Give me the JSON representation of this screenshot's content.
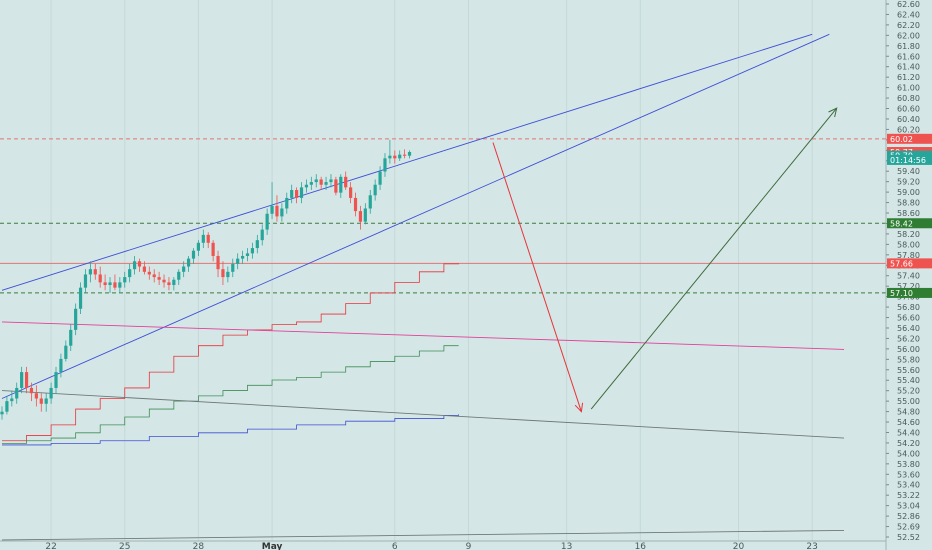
{
  "chart_data": {
    "type": "candlestick",
    "colors": {
      "background": "#d5e6e6",
      "up": "#26a69a",
      "down": "#ef5350",
      "channel": "#3d4fd8",
      "red_arrow": "#e8333a",
      "green_arrow": "#3c6b3c",
      "red_dashed": "#e57373",
      "green_dashed": "#3a7d3a",
      "pink_line": "#e0409a",
      "gray_line": "#6f7878",
      "step_red": "#e8333a",
      "step_green": "#3e8e54",
      "step_blue": "#3d4fd8"
    },
    "y_axis": {
      "min": 52.4,
      "max": 62.65,
      "side": "right",
      "ticks": [
        "62.60",
        "62.40",
        "62.20",
        "62.00",
        "61.80",
        "61.60",
        "61.40",
        "61.20",
        "61.00",
        "60.80",
        "60.60",
        "60.40",
        "60.20",
        "60.00",
        "59.80",
        "59.60",
        "59.40",
        "59.20",
        "59.00",
        "58.80",
        "58.60",
        "58.40",
        "58.20",
        "58.00",
        "57.80",
        "57.60",
        "57.40",
        "57.20",
        "57.00",
        "56.80",
        "56.60",
        "56.40",
        "56.20",
        "56.00",
        "55.80",
        "55.60",
        "55.40",
        "55.20",
        "55.00",
        "54.80",
        "54.60",
        "54.40",
        "54.20",
        "54.00",
        "53.80",
        "53.60",
        "53.40",
        "53.22",
        "53.04",
        "52.86",
        "52.69",
        "52.52"
      ]
    },
    "x_axis": {
      "ticks": [
        {
          "label": "22",
          "day": 22,
          "bold": false
        },
        {
          "label": "25",
          "day": 25,
          "bold": false
        },
        {
          "label": "28",
          "day": 28,
          "bold": false
        },
        {
          "label": "May",
          "day": 31,
          "bold": true
        },
        {
          "label": "6",
          "day": 36,
          "bold": false
        },
        {
          "label": "9",
          "day": 39,
          "bold": false
        },
        {
          "label": "13",
          "day": 43,
          "bold": false
        },
        {
          "label": "16",
          "day": 46,
          "bold": false
        },
        {
          "label": "20",
          "day": 50,
          "bold": false
        },
        {
          "label": "23",
          "day": 53,
          "bold": false
        }
      ]
    },
    "price_badges": [
      {
        "value": 60.02,
        "text": "60.02",
        "color": "#ef5350"
      },
      {
        "value": 59.77,
        "text": "59.77",
        "color": "#ef5350"
      },
      {
        "value": 59.7,
        "text": "59.70",
        "color": "#26a69a"
      },
      {
        "value": 59.62,
        "text": "01:14:56",
        "color": "#26a69a"
      },
      {
        "value": 58.42,
        "text": "58.42",
        "color": "#2e7d32"
      },
      {
        "value": 57.66,
        "text": "57.66",
        "color": "#ef5350"
      },
      {
        "value": 57.1,
        "text": "57.10",
        "color": "#2e7d32"
      }
    ],
    "horizontal_lines": [
      {
        "value": 60.02,
        "style": "dashed",
        "color_key": "red_dashed"
      },
      {
        "value": 58.42,
        "style": "dashed",
        "color_key": "green_dashed"
      },
      {
        "value": 57.66,
        "style": "solid",
        "color_key": "red_dashed"
      },
      {
        "value": 57.1,
        "style": "dashed",
        "color_key": "green_dashed"
      }
    ],
    "trend_lines": [
      {
        "name": "channel-upper",
        "from": [
          20.0,
          57.15
        ],
        "to": [
          53.0,
          62.0
        ],
        "color_key": "channel"
      },
      {
        "name": "channel-lower",
        "from": [
          20.0,
          55.1
        ],
        "to": [
          53.7,
          62.0
        ],
        "color_key": "channel"
      },
      {
        "name": "pink-line",
        "from": [
          20.0,
          56.55
        ],
        "to": [
          54.3,
          56.03
        ],
        "color_key": "pink_line"
      },
      {
        "name": "gray-line",
        "from": [
          20.0,
          55.25
        ],
        "to": [
          54.3,
          54.35
        ],
        "color_key": "gray_line"
      },
      {
        "name": "bottom-line",
        "from": [
          20.0,
          52.42
        ],
        "to": [
          54.3,
          52.6
        ],
        "color_key": "gray_line"
      }
    ],
    "arrows": [
      {
        "name": "red-down-arrow",
        "from": [
          40.0,
          59.95
        ],
        "to": [
          43.6,
          54.85
        ],
        "color_key": "red_arrow"
      },
      {
        "name": "green-up-arrow",
        "from": [
          44.0,
          54.9
        ],
        "to": [
          54.0,
          60.6
        ],
        "color_key": "green_arrow"
      }
    ],
    "step_lines": [
      {
        "name": "red-steps",
        "color_key": "step_red",
        "points": [
          [
            20,
            54.3
          ],
          [
            21,
            54.4
          ],
          [
            22,
            54.6
          ],
          [
            23,
            54.9
          ],
          [
            24,
            55.1
          ],
          [
            25,
            55.3
          ],
          [
            26,
            55.6
          ],
          [
            27,
            55.9
          ],
          [
            28,
            56.1
          ],
          [
            29,
            56.3
          ],
          [
            30,
            56.4
          ],
          [
            31,
            56.5
          ],
          [
            32,
            56.55
          ],
          [
            33,
            56.7
          ],
          [
            34,
            56.9
          ],
          [
            35,
            57.1
          ],
          [
            36,
            57.3
          ],
          [
            37,
            57.5
          ],
          [
            38,
            57.65
          ],
          [
            38.6,
            57.66
          ]
        ]
      },
      {
        "name": "green-steps",
        "color_key": "step_green",
        "points": [
          [
            20,
            54.25
          ],
          [
            21,
            54.3
          ],
          [
            22,
            54.35
          ],
          [
            23,
            54.45
          ],
          [
            24,
            54.6
          ],
          [
            25,
            54.75
          ],
          [
            26,
            54.9
          ],
          [
            27,
            55.05
          ],
          [
            28,
            55.15
          ],
          [
            29,
            55.25
          ],
          [
            30,
            55.35
          ],
          [
            31,
            55.45
          ],
          [
            32,
            55.5
          ],
          [
            33,
            55.6
          ],
          [
            34,
            55.7
          ],
          [
            35,
            55.8
          ],
          [
            36,
            55.9
          ],
          [
            37,
            56.0
          ],
          [
            38,
            56.1
          ],
          [
            38.6,
            56.1
          ]
        ]
      },
      {
        "name": "blue-steps",
        "color_key": "step_blue",
        "points": [
          [
            20,
            54.22
          ],
          [
            22,
            54.25
          ],
          [
            24,
            54.3
          ],
          [
            26,
            54.38
          ],
          [
            28,
            54.45
          ],
          [
            30,
            54.52
          ],
          [
            32,
            54.6
          ],
          [
            34,
            54.67
          ],
          [
            36,
            54.72
          ],
          [
            38,
            54.78
          ],
          [
            38.6,
            54.8
          ]
        ]
      }
    ],
    "candles": [
      [
        20.0,
        54.8,
        54.95,
        54.7,
        54.85
      ],
      [
        20.2,
        54.85,
        55.15,
        54.8,
        55.05
      ],
      [
        20.4,
        55.05,
        55.25,
        54.95,
        55.1
      ],
      [
        20.6,
        55.1,
        55.4,
        55.0,
        55.3
      ],
      [
        20.8,
        55.3,
        55.7,
        55.2,
        55.6
      ],
      [
        21.0,
        55.6,
        55.7,
        55.2,
        55.3
      ],
      [
        21.2,
        55.3,
        55.4,
        55.05,
        55.2
      ],
      [
        21.4,
        55.2,
        55.35,
        54.95,
        55.1
      ],
      [
        21.6,
        55.1,
        55.2,
        54.85,
        55.0
      ],
      [
        21.8,
        55.0,
        55.2,
        54.85,
        55.1
      ],
      [
        22.0,
        55.1,
        55.4,
        55.0,
        55.3
      ],
      [
        22.2,
        55.3,
        55.7,
        55.2,
        55.6
      ],
      [
        22.4,
        55.6,
        55.95,
        55.5,
        55.85
      ],
      [
        22.6,
        55.85,
        56.2,
        55.8,
        56.1
      ],
      [
        22.8,
        56.1,
        56.5,
        56.0,
        56.4
      ],
      [
        23.0,
        56.4,
        56.9,
        56.3,
        56.8
      ],
      [
        23.2,
        56.8,
        57.3,
        56.7,
        57.2
      ],
      [
        23.4,
        57.2,
        57.55,
        57.1,
        57.45
      ],
      [
        23.6,
        57.45,
        57.7,
        57.3,
        57.55
      ],
      [
        23.8,
        57.55,
        57.65,
        57.35,
        57.45
      ],
      [
        24.0,
        57.45,
        57.6,
        57.2,
        57.3
      ],
      [
        24.2,
        57.3,
        57.45,
        57.15,
        57.25
      ],
      [
        24.4,
        57.25,
        57.4,
        57.1,
        57.3
      ],
      [
        24.6,
        57.3,
        57.45,
        57.15,
        57.2
      ],
      [
        24.8,
        57.2,
        57.4,
        57.1,
        57.3
      ],
      [
        25.0,
        57.3,
        57.5,
        57.2,
        57.4
      ],
      [
        25.2,
        57.4,
        57.65,
        57.3,
        57.55
      ],
      [
        25.4,
        57.55,
        57.8,
        57.45,
        57.7
      ],
      [
        25.6,
        57.7,
        57.75,
        57.5,
        57.6
      ],
      [
        25.8,
        57.6,
        57.7,
        57.45,
        57.5
      ],
      [
        26.0,
        57.5,
        57.6,
        57.35,
        57.45
      ],
      [
        26.2,
        57.45,
        57.55,
        57.3,
        57.4
      ],
      [
        26.4,
        57.4,
        57.5,
        57.25,
        57.35
      ],
      [
        26.6,
        57.35,
        57.45,
        57.2,
        57.3
      ],
      [
        26.8,
        57.3,
        57.4,
        57.15,
        57.25
      ],
      [
        27.0,
        57.25,
        57.4,
        57.15,
        57.35
      ],
      [
        27.2,
        57.35,
        57.55,
        57.25,
        57.5
      ],
      [
        27.4,
        57.5,
        57.7,
        57.4,
        57.6
      ],
      [
        27.6,
        57.6,
        57.8,
        57.5,
        57.75
      ],
      [
        27.8,
        57.75,
        57.95,
        57.65,
        57.9
      ],
      [
        28.0,
        57.9,
        58.1,
        57.8,
        58.05
      ],
      [
        28.2,
        58.05,
        58.3,
        57.95,
        58.2
      ],
      [
        28.4,
        58.2,
        58.25,
        57.95,
        58.05
      ],
      [
        28.6,
        58.05,
        58.1,
        57.7,
        57.8
      ],
      [
        28.8,
        57.8,
        57.9,
        57.4,
        57.55
      ],
      [
        29.0,
        57.55,
        57.7,
        57.25,
        57.4
      ],
      [
        29.2,
        57.4,
        57.6,
        57.3,
        57.5
      ],
      [
        29.4,
        57.5,
        57.75,
        57.4,
        57.65
      ],
      [
        29.6,
        57.65,
        57.85,
        57.55,
        57.75
      ],
      [
        29.8,
        57.75,
        57.9,
        57.65,
        57.8
      ],
      [
        30.0,
        57.8,
        57.95,
        57.7,
        57.85
      ],
      [
        30.2,
        57.85,
        58.05,
        57.75,
        57.95
      ],
      [
        30.4,
        57.95,
        58.2,
        57.85,
        58.1
      ],
      [
        30.6,
        58.1,
        58.4,
        58.0,
        58.3
      ],
      [
        30.8,
        58.3,
        58.7,
        58.2,
        58.6
      ],
      [
        31.0,
        58.6,
        59.2,
        58.5,
        58.75
      ],
      [
        31.2,
        58.75,
        58.95,
        58.45,
        58.55
      ],
      [
        31.4,
        58.55,
        58.8,
        58.45,
        58.7
      ],
      [
        31.6,
        58.7,
        59.0,
        58.6,
        58.9
      ],
      [
        31.8,
        58.9,
        59.15,
        58.8,
        59.05
      ],
      [
        32.0,
        59.05,
        59.1,
        58.8,
        58.9
      ],
      [
        32.2,
        58.9,
        59.2,
        58.8,
        59.1
      ],
      [
        32.4,
        59.1,
        59.25,
        59.0,
        59.15
      ],
      [
        32.6,
        59.15,
        59.3,
        59.05,
        59.2
      ],
      [
        32.8,
        59.2,
        59.35,
        59.1,
        59.25
      ],
      [
        33.0,
        59.25,
        59.3,
        59.05,
        59.15
      ],
      [
        33.2,
        59.15,
        59.3,
        59.05,
        59.2
      ],
      [
        33.4,
        59.2,
        59.35,
        59.1,
        59.25
      ],
      [
        33.6,
        59.25,
        59.3,
        58.95,
        59.0
      ],
      [
        33.8,
        59.0,
        59.35,
        58.9,
        59.3
      ],
      [
        34.0,
        59.3,
        59.4,
        59.05,
        59.1
      ],
      [
        34.2,
        59.1,
        59.2,
        58.8,
        58.9
      ],
      [
        34.4,
        58.9,
        59.0,
        58.55,
        58.65
      ],
      [
        34.6,
        58.65,
        58.75,
        58.3,
        58.45
      ],
      [
        34.8,
        58.45,
        58.8,
        58.4,
        58.7
      ],
      [
        35.0,
        58.7,
        59.05,
        58.6,
        58.95
      ],
      [
        35.2,
        58.95,
        59.25,
        58.85,
        59.15
      ],
      [
        35.4,
        59.15,
        59.5,
        59.05,
        59.4
      ],
      [
        35.6,
        59.4,
        59.75,
        59.3,
        59.65
      ],
      [
        35.8,
        59.65,
        60.0,
        59.55,
        59.7
      ],
      [
        36.0,
        59.7,
        59.8,
        59.55,
        59.65
      ],
      [
        36.2,
        59.65,
        59.8,
        59.6,
        59.72
      ],
      [
        36.4,
        59.72,
        59.82,
        59.65,
        59.7
      ],
      [
        36.6,
        59.7,
        59.8,
        59.65,
        59.77
      ]
    ]
  }
}
